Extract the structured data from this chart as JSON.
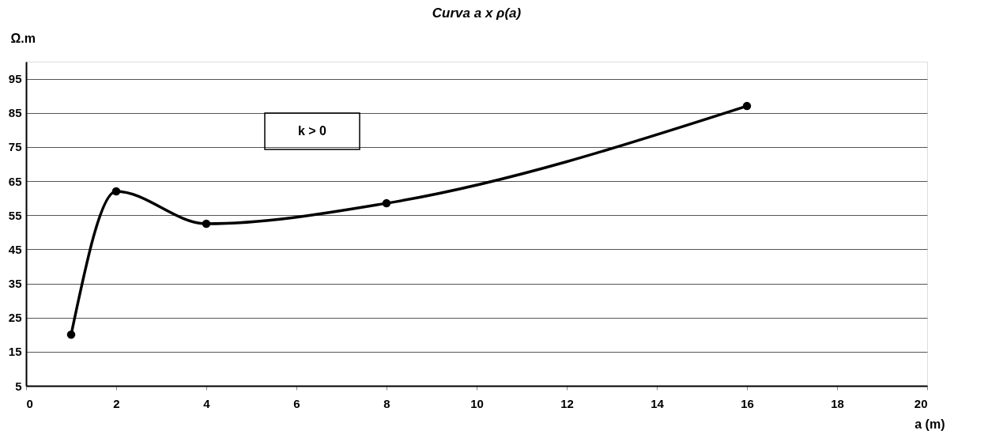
{
  "chart_data": {
    "type": "line",
    "title": "Curva a x ρ(a)",
    "xlabel": "a (m)",
    "ylabel": "Ω.m",
    "x": [
      1,
      2,
      4,
      8,
      16
    ],
    "series": [
      {
        "color": "#000000",
        "values": [
          20,
          62,
          52.5,
          58.5,
          87
        ]
      }
    ],
    "xlim": [
      0,
      20
    ],
    "xticks": [
      0,
      2,
      4,
      6,
      8,
      10,
      12,
      14,
      16,
      18,
      20
    ],
    "ylim": [
      5,
      100
    ],
    "yticks": [
      5,
      15,
      25,
      35,
      45,
      55,
      65,
      75,
      85,
      95
    ],
    "grid": "y",
    "marker": "circle",
    "line_style": "solid",
    "legend": false,
    "annotations": [
      "k > 0"
    ]
  }
}
